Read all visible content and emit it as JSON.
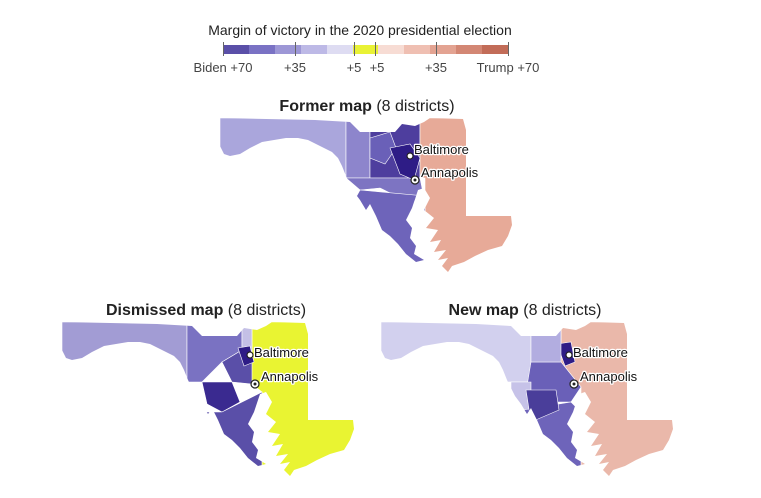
{
  "legend": {
    "title": "Margin of victory in the 2020 presidential election",
    "labels": [
      "Biden +70",
      "+35",
      "+5",
      "+5",
      "+35",
      "Trump +70"
    ],
    "colors": [
      "#5a4fa8",
      "#7a72c4",
      "#9d97d6",
      "#bdb9e6",
      "#dedcf2",
      "#e9f235",
      "#f7dcd4",
      "#efbfb2",
      "#e3a392",
      "#d38774",
      "#c26c58"
    ]
  },
  "maps": [
    {
      "name": "former",
      "title_bold": "Former map",
      "title_rest": " (8 districts)",
      "cities": [
        {
          "name": "Baltimore"
        },
        {
          "name": "Annapolis"
        }
      ]
    },
    {
      "name": "dismissed",
      "title_bold": "Dismissed map",
      "title_rest": " (8 districts)",
      "cities": [
        {
          "name": "Baltimore"
        },
        {
          "name": "Annapolis"
        }
      ]
    },
    {
      "name": "new",
      "title_bold": "New map",
      "title_rest": " (8 districts)",
      "cities": [
        {
          "name": "Baltimore"
        },
        {
          "name": "Annapolis"
        }
      ]
    }
  ],
  "district_colors": {
    "former": [
      "#aaa6dc",
      "#8d85cc",
      "#4e3e9e",
      "#6a60b8",
      "#e7aa98",
      "#7d74c2",
      "#2e1c86",
      "#6e64ba"
    ],
    "dismissed": [
      "#a29cd4",
      "#7a72c2",
      "#5a4fa8",
      "#3a2a90",
      "#e9f432",
      "#c4c0e6",
      "#5a4fa8",
      "#2e1c86"
    ],
    "new": [
      "#d2d0ee",
      "#eab8aa",
      "#6a60b8",
      "#2e1c86",
      "#b2ade0",
      "#c6c2e8",
      "#6e64ba",
      "#4a3e9a"
    ]
  }
}
